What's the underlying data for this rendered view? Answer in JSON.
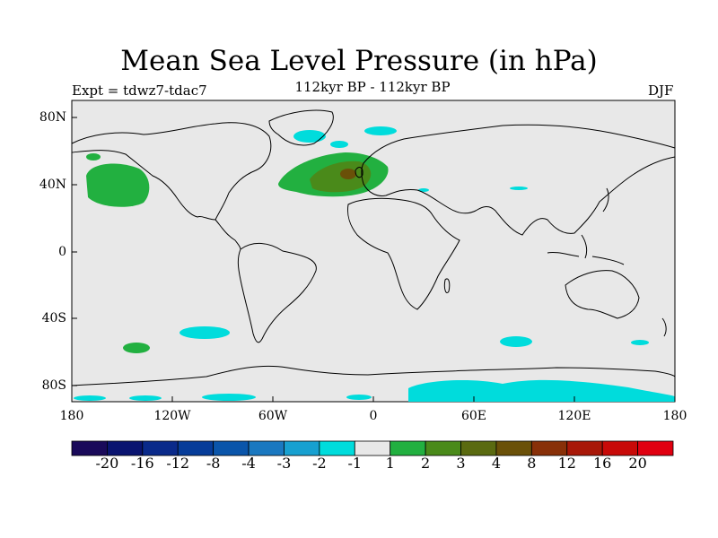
{
  "title": "Mean Sea Level Pressure (in hPa)",
  "experiment": "Expt = tdwz7-tdac7",
  "subtitle": "112kyr BP - 112kyr BP",
  "season": "DJF",
  "axes": {
    "lat_ticks": [
      "80N",
      "40N",
      "0",
      "40S",
      "80S"
    ],
    "lon_ticks": [
      "180",
      "120W",
      "60W",
      "0",
      "60E",
      "120E",
      "180"
    ]
  },
  "colorbar": {
    "labels": [
      "-20",
      "-16",
      "-12",
      "-8",
      "-4",
      "-3",
      "-2",
      "-1",
      "1",
      "2",
      "3",
      "4",
      "8",
      "12",
      "16",
      "20"
    ],
    "colors": [
      "#1a0a5a",
      "#0a1470",
      "#0a2a8a",
      "#063c99",
      "#0a55aa",
      "#1a78c0",
      "#17a0d0",
      "#00dcdc",
      "#e8e8e8",
      "#22b040",
      "#4a8a1a",
      "#5a6a10",
      "#6a5008",
      "#883008",
      "#a81808",
      "#c80a08",
      "#e00010"
    ]
  },
  "map_colors": {
    "background": "#e8e8e8",
    "negative_small": "#00dcdc",
    "positive_2": "#22b040",
    "positive_3": "#4a8a1a",
    "positive_4": "#6a5008"
  }
}
